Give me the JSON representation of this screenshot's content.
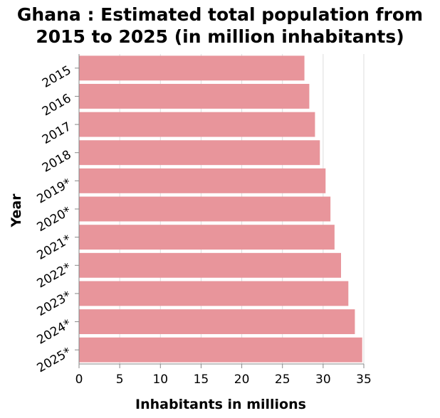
{
  "chart_data": {
    "type": "bar",
    "orientation": "horizontal",
    "title_lines": [
      "Ghana : Estimated total population from",
      "2015 to 2025 (in million inhabitants)"
    ],
    "xlabel": "Inhabitants in millions",
    "ylabel": "Year",
    "categories": [
      "2015",
      "2016",
      "2017",
      "2018",
      "2019*",
      "2020*",
      "2021*",
      "2022*",
      "2023*",
      "2024*",
      "2025*"
    ],
    "values": [
      27.7,
      28.3,
      29.0,
      29.6,
      30.3,
      30.9,
      31.4,
      32.2,
      33.1,
      33.9,
      34.8
    ],
    "xlim": [
      0,
      35
    ],
    "xticks": [
      0,
      5,
      10,
      15,
      20,
      25,
      30,
      35
    ],
    "grid": true,
    "bar_color": "#e8959b"
  }
}
